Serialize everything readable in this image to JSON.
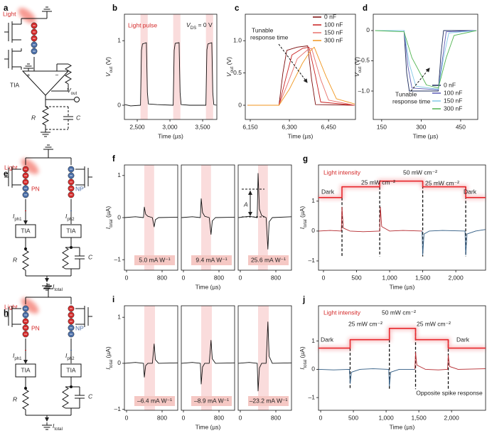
{
  "circuit_a": {
    "label": "a",
    "light": "Light",
    "tia": "TIA",
    "plus": "+",
    "minus": "−",
    "vout": {
      "main": "V",
      "sub": "out"
    },
    "r": "R",
    "c": "C"
  },
  "circuit_e": {
    "label": "e",
    "light": "Light",
    "pn": "PN",
    "np": "NP",
    "iph1": {
      "main": "I",
      "sub": "ph1"
    },
    "iph2": {
      "main": "I",
      "sub": "ph2"
    },
    "tia1": "TIA",
    "tia2": "TIA",
    "r": "R",
    "c": "C",
    "itotal": {
      "main": "I",
      "sub": "total"
    }
  },
  "circuit_h": {
    "label": "h",
    "light": "Light",
    "pn": "PN",
    "np": "NP",
    "iph1": {
      "main": "I",
      "sub": "ph1"
    },
    "iph2": {
      "main": "I",
      "sub": "ph2"
    },
    "tia1": "TIA",
    "tia2": "TIA",
    "r": "R",
    "c": "C",
    "itotal": {
      "main": "I",
      "sub": "total"
    }
  },
  "plots": [
    {
      "type": "line",
      "label": "b",
      "xlim": [
        2304,
        3717
      ],
      "ylim": [
        -0.22,
        1.41
      ],
      "xticks": [
        {
          "value": 2500,
          "label": "2,500"
        },
        {
          "value": 3000,
          "label": "3,000"
        },
        {
          "value": 3500,
          "label": "3,500"
        }
      ],
      "yticks": [
        0,
        1
      ],
      "xlabel": "Time (µs)",
      "ylabel": {
        "main": "V",
        "sub": "out",
        "rest": " (V)"
      },
      "shades": [
        [
          2550,
          2660
        ],
        [
          3050,
          3160
        ],
        [
          3550,
          3660
        ]
      ],
      "series": [
        {
          "color": "#111111",
          "x": [
            2310,
            2400,
            2550,
            2565,
            2580,
            2640,
            2655,
            2670,
            2800,
            3050,
            3065,
            3080,
            3140,
            3155,
            3170,
            3300,
            3550,
            3565,
            3580,
            3640,
            3655,
            3670,
            3710
          ],
          "y": [
            0.01,
            -0.01,
            0,
            0.85,
            0.95,
            0.97,
            0.2,
            0.02,
            0.01,
            0,
            0.85,
            0.96,
            0.97,
            0.2,
            0.01,
            0,
            0,
            0.86,
            0.95,
            0.97,
            0.2,
            0.01,
            0
          ]
        }
      ],
      "notes": [
        "Light pulse",
        {
          "main": "V",
          "sub": "DS",
          "rest": " = 0 V"
        }
      ]
    },
    {
      "type": "line",
      "label": "c",
      "xlim": [
        6131,
        6553
      ],
      "ylim": [
        -0.22,
        1.41
      ],
      "xticks": [
        {
          "value": 6150,
          "label": "6,150"
        },
        {
          "value": 6300,
          "label": "6,300"
        },
        {
          "value": 6450,
          "label": "6,450"
        }
      ],
      "yticks": [
        0,
        0.5,
        {
          "value": 1,
          "label": "1.0"
        }
      ],
      "xlabel": "Time (µs)",
      "ylabel": {
        "main": "V",
        "sub": "out",
        "rest": " (V)"
      },
      "series": [
        {
          "name": "0  nF",
          "color": "#7a0a0a",
          "x": [
            6140,
            6260,
            6275,
            6290,
            6330,
            6370,
            6385,
            6400,
            6550
          ],
          "y": [
            0,
            0,
            0.5,
            0.85,
            0.9,
            0.92,
            0.4,
            0.01,
            0
          ]
        },
        {
          "name": "100 nF",
          "color": "#c81e1e",
          "x": [
            6140,
            6260,
            6285,
            6310,
            6350,
            6375,
            6400,
            6420,
            6550
          ],
          "y": [
            0,
            0,
            0.4,
            0.78,
            0.88,
            0.9,
            0.45,
            0.05,
            0
          ]
        },
        {
          "name": "150 nF",
          "color": "#e8706a",
          "x": [
            6140,
            6260,
            6290,
            6330,
            6370,
            6385,
            6420,
            6450,
            6550
          ],
          "y": [
            0,
            0,
            0.3,
            0.72,
            0.86,
            0.88,
            0.4,
            0.08,
            0
          ]
        },
        {
          "name": "300 nF",
          "color": "#f0961e",
          "x": [
            6140,
            6260,
            6300,
            6350,
            6380,
            6395,
            6440,
            6480,
            6550
          ],
          "y": [
            0,
            0,
            0.25,
            0.65,
            0.84,
            0.9,
            0.45,
            0.1,
            0.02
          ]
        }
      ],
      "notes": [
        "Tunable",
        "response time"
      ]
    },
    {
      "type": "line",
      "label": "d",
      "xlim": [
        118,
        515
      ],
      "ylim": [
        -1.47,
        0.27
      ],
      "xticks": [
        150,
        300,
        450
      ],
      "yticks": [
        0,
        {
          "value": -0.5,
          "label": "–0.5"
        },
        {
          "value": -1,
          "label": "–1.0"
        }
      ],
      "xlabel": "Time (µs)",
      "ylabel": {
        "main": "V",
        "sub": "out",
        "rest": " (V)"
      },
      "series": [
        {
          "name": "0  nF",
          "color": "#1a2a5a",
          "x": [
            125,
            235,
            245,
            255,
            365,
            375,
            385,
            510
          ],
          "y": [
            0,
            0,
            -0.7,
            -1.0,
            -1.0,
            -0.4,
            0,
            0
          ]
        },
        {
          "name": "100 nF",
          "color": "#5a5ab4",
          "x": [
            125,
            235,
            250,
            265,
            365,
            380,
            395,
            510
          ],
          "y": [
            0,
            0,
            -0.6,
            -0.95,
            -0.98,
            -0.5,
            -0.02,
            0
          ]
        },
        {
          "name": "150 nF",
          "color": "#82c8e6",
          "x": [
            125,
            235,
            255,
            280,
            365,
            385,
            405,
            510
          ],
          "y": [
            0,
            0,
            -0.55,
            -0.92,
            -0.97,
            -0.45,
            -0.04,
            0
          ]
        },
        {
          "name": "300 nF",
          "color": "#50b450",
          "x": [
            125,
            235,
            265,
            320,
            365,
            395,
            425,
            510
          ],
          "y": [
            0,
            -0.02,
            -0.45,
            -0.9,
            -0.95,
            -0.45,
            -0.08,
            0
          ]
        }
      ],
      "notes": [
        "Tunable",
        "response time"
      ]
    },
    {
      "type": "line",
      "label": "f",
      "xlim": [
        -48,
        1152
      ],
      "ylim": [
        -1.25,
        1.25
      ],
      "xticks": [
        0,
        800
      ],
      "yticks": [
        1,
        0,
        {
          "value": -1,
          "label": "–1"
        }
      ],
      "ylabel": {
        "main": "I",
        "sub": "total",
        "rest": " (µA)"
      },
      "shades": [
        [
          400,
          620
        ]
      ],
      "series": [
        {
          "color": "#111111",
          "x": [
            -40,
            200,
            380,
            400,
            430,
            480,
            580,
            620,
            650,
            720,
            1150
          ],
          "y": [
            0,
            0.02,
            0,
            0.25,
            0.08,
            0.03,
            0,
            -0.22,
            -0.05,
            0,
            0.01
          ]
        }
      ],
      "notes": [
        "5.0 mA W⁻¹"
      ]
    },
    {
      "type": "line",
      "xlim": [
        -48,
        1152
      ],
      "ylim": [
        -1.25,
        1.25
      ],
      "xticks": [
        0,
        800
      ],
      "xlabel": "Time (µs)",
      "shades": [
        [
          400,
          620
        ]
      ],
      "series": [
        {
          "color": "#111111",
          "x": [
            -40,
            200,
            380,
            400,
            430,
            480,
            580,
            620,
            650,
            720,
            1150
          ],
          "y": [
            0,
            0.02,
            0,
            0.45,
            0.12,
            0.03,
            0,
            -0.4,
            -0.08,
            0,
            0.01
          ]
        }
      ],
      "notes": [
        "9.4 mA W⁻¹"
      ]
    },
    {
      "type": "line",
      "xlim": [
        -48,
        1152
      ],
      "ylim": [
        -1.25,
        1.25
      ],
      "xticks": [
        0,
        800
      ],
      "shades": [
        [
          400,
          620
        ]
      ],
      "series": [
        {
          "color": "#111111",
          "x": [
            -40,
            200,
            380,
            400,
            430,
            480,
            580,
            620,
            650,
            720,
            1150
          ],
          "y": [
            0,
            0.03,
            0,
            1.05,
            0.2,
            0.05,
            0,
            -0.75,
            -0.1,
            0,
            0.02
          ]
        }
      ],
      "notes": [
        "25.6 mA W⁻¹",
        "A"
      ]
    },
    {
      "type": "line",
      "label": "g",
      "xlim": [
        -75,
        2450
      ],
      "ylim": [
        -1.31,
        2.21
      ],
      "xticks": [
        0,
        500,
        {
          "value": 1000,
          "label": "1,000"
        },
        {
          "value": 1500,
          "label": "1,500"
        },
        {
          "value": 2000,
          "label": "2,000"
        }
      ],
      "yticks": [
        1,
        0,
        {
          "value": -1,
          "label": "–1"
        }
      ],
      "xlabel": "Time (µs)",
      "ylabel": {
        "main": "I",
        "sub": "total",
        "rest": " (µA)"
      },
      "series": [
        {
          "color": "#e8282d",
          "glow": true,
          "x": [
            -75,
            280,
            280,
            850,
            850,
            1500,
            1500,
            2150,
            2150,
            2450
          ],
          "y": [
            1.12,
            1.12,
            1.48,
            1.48,
            1.67,
            1.67,
            1.48,
            1.48,
            1.12,
            1.12
          ]
        },
        {
          "color": "#b4282d",
          "x": [
            -70,
            100,
            270,
            280,
            300,
            400,
            600,
            850,
            860,
            880,
            1000,
            1200,
            1490
          ],
          "y": [
            0,
            0.02,
            0,
            0.8,
            0.1,
            0,
            -0.02,
            0,
            0.8,
            0.15,
            0,
            0.02,
            0
          ]
        },
        {
          "color": "#2e5a82",
          "x": [
            1490,
            1500,
            1520,
            1600,
            1800,
            2140,
            2150,
            2170,
            2300,
            2445
          ],
          "y": [
            0,
            -0.8,
            -0.1,
            0,
            0.02,
            0,
            -0.8,
            -0.1,
            0,
            0.05
          ]
        }
      ],
      "notes": [
        "Light intensity",
        "Dark",
        "25 mW cm⁻²",
        "50 mW cm⁻²",
        "25 mW cm⁻²",
        "Dark"
      ]
    },
    {
      "type": "line",
      "label": "i",
      "xlim": [
        -48,
        1152
      ],
      "ylim": [
        -1.02,
        1.25
      ],
      "xticks": [
        0,
        800
      ],
      "yticks": [
        1,
        0,
        {
          "value": -1,
          "label": "–1"
        }
      ],
      "ylabel": {
        "main": "I",
        "sub": "total",
        "rest": " (µA)"
      },
      "shades": [
        [
          400,
          640
        ]
      ],
      "series": [
        {
          "color": "#111111",
          "x": [
            -40,
            200,
            380,
            400,
            430,
            480,
            580,
            620,
            650,
            720,
            1150
          ],
          "y": [
            0,
            0.02,
            0,
            -0.3,
            -0.05,
            0,
            0,
            0.42,
            0.08,
            0,
            0.01
          ]
        }
      ],
      "notes": [
        "–6.4 mA W⁻¹"
      ]
    },
    {
      "type": "line",
      "xlim": [
        -48,
        1152
      ],
      "ylim": [
        -1.02,
        1.25
      ],
      "xticks": [
        0,
        800
      ],
      "xlabel": "Time (µs)",
      "shades": [
        [
          400,
          640
        ]
      ],
      "series": [
        {
          "color": "#111111",
          "x": [
            -40,
            200,
            380,
            400,
            430,
            480,
            580,
            620,
            650,
            720,
            1150
          ],
          "y": [
            0,
            0.02,
            0,
            -0.45,
            -0.08,
            0,
            0,
            0.5,
            0.1,
            0,
            0.01
          ]
        }
      ],
      "notes": [
        "–8.9 mA W⁻¹"
      ]
    },
    {
      "type": "line",
      "xlim": [
        -48,
        1152
      ],
      "ylim": [
        -1.02,
        1.25
      ],
      "xticks": [
        0,
        800
      ],
      "shades": [
        [
          400,
          640
        ]
      ],
      "series": [
        {
          "color": "#111111",
          "x": [
            -40,
            200,
            380,
            400,
            430,
            480,
            580,
            620,
            650,
            720,
            1150
          ],
          "y": [
            0,
            0.02,
            0,
            -0.6,
            -0.1,
            0,
            0,
            0.9,
            0.15,
            0,
            0.01
          ]
        }
      ],
      "notes": [
        "–23.2 mA W⁻¹"
      ]
    },
    {
      "type": "line",
      "label": "j",
      "xlim": [
        -33,
        2520
      ],
      "ylim": [
        -1.45,
        2.25
      ],
      "xticks": [
        0,
        500,
        {
          "value": 1000,
          "label": "1,000"
        },
        {
          "value": 1500,
          "label": "1,500"
        },
        {
          "value": 2000,
          "label": "2,000"
        }
      ],
      "yticks": [
        1,
        0,
        {
          "value": -1,
          "label": "–1"
        }
      ],
      "xlabel": "Time (µs)",
      "ylabel": {
        "main": "I",
        "sub": "total",
        "rest": " (µA)"
      },
      "series": [
        {
          "color": "#e8282d",
          "glow": true,
          "x": [
            -33,
            450,
            450,
            1050,
            1050,
            1450,
            1450,
            1950,
            1950,
            2520
          ],
          "y": [
            0.75,
            0.75,
            1.05,
            1.05,
            1.45,
            1.45,
            1.05,
            1.05,
            0.75,
            0.75
          ]
        },
        {
          "color": "#2e5a82",
          "x": [
            -30,
            200,
            440,
            450,
            470,
            600,
            800,
            1040,
            1050,
            1070,
            1200,
            1440
          ],
          "y": [
            0,
            -0.02,
            0,
            -0.5,
            -0.1,
            0,
            0.02,
            0,
            -0.6,
            -0.1,
            0,
            0
          ]
        },
        {
          "color": "#b4282d",
          "x": [
            1440,
            1450,
            1470,
            1600,
            1800,
            1940,
            1950,
            1970,
            2100,
            2515
          ],
          "y": [
            0,
            0.6,
            0.15,
            0,
            -0.02,
            0,
            0.5,
            0.1,
            0,
            0.02
          ]
        }
      ],
      "notes": [
        "Light intensity",
        "Dark",
        "25 mW cm⁻²",
        "50 mW cm⁻²",
        "25 mW cm⁻²",
        "Dark",
        "Opposite spike response"
      ]
    }
  ]
}
